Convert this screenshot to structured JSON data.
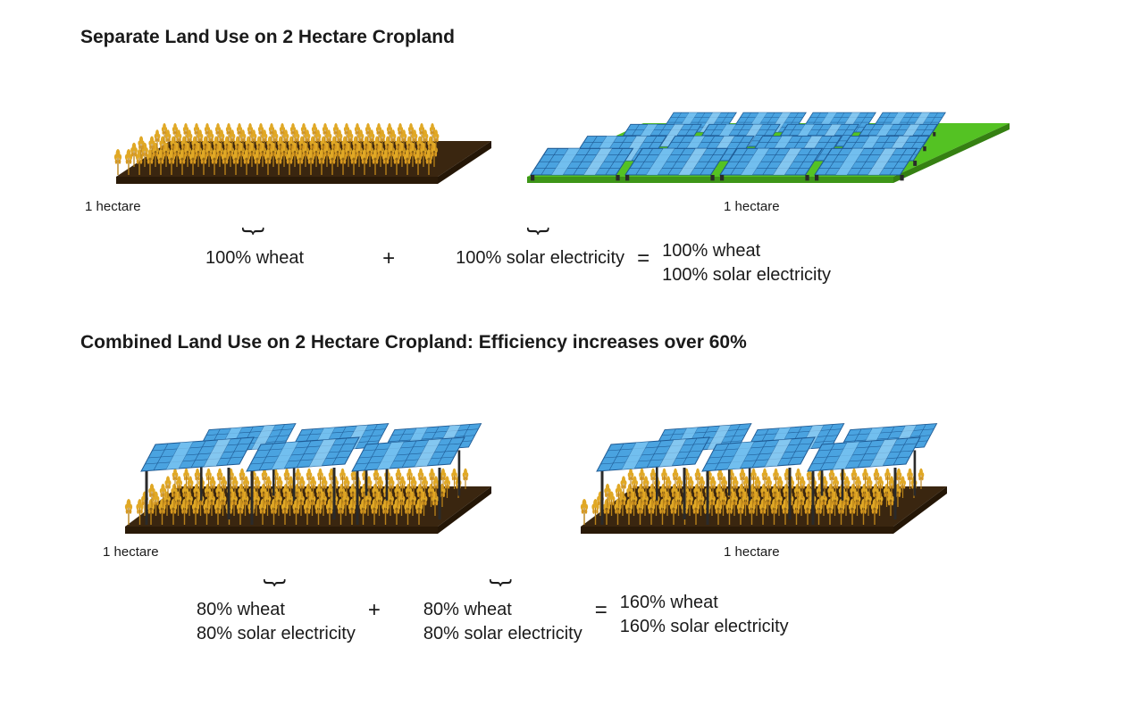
{
  "colors": {
    "bg": "#ffffff",
    "text": "#1a1a1a",
    "soil_top": "#3a2610",
    "soil_side": "#2a1a08",
    "grass": "#54c223",
    "grass_side": "#3e9618",
    "wheat_light": "#e0a825",
    "wheat_dark": "#b8821a",
    "panel_light": "#7cc5f2",
    "panel_mid": "#4aa3e0",
    "panel_dark": "#2d7ec4",
    "panel_frame": "#1e5a94",
    "pole": "#2a2a2a"
  },
  "fonts": {
    "title_size": 21,
    "label_size": 15,
    "eq_size": 20
  },
  "section1": {
    "title": "Separate Land Use on 2 Hectare Cropland",
    "left_area": "1 hectare",
    "right_area": "1 hectare",
    "eq_left": [
      "100% wheat"
    ],
    "eq_right": [
      "100% solar electricity"
    ],
    "eq_result": [
      "100% wheat",
      "100% solar electricity"
    ]
  },
  "section2": {
    "title": "Combined Land Use on 2 Hectare Cropland: Efficiency increases over 60%",
    "left_area": "1 hectare",
    "right_area": "1 hectare",
    "eq_left": [
      "80% wheat",
      "80% solar electricity"
    ],
    "eq_right": [
      "80% wheat",
      "80% solar electricity"
    ],
    "eq_result": [
      "160% wheat",
      "160% solar electricity"
    ]
  },
  "op_plus": "+",
  "op_eq": "=",
  "brace": "}"
}
